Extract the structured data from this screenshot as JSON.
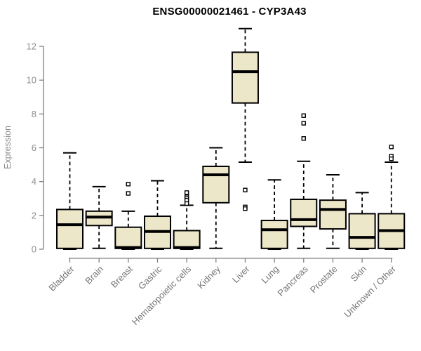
{
  "title": "ENSG00000021461 - CYP3A43",
  "chart_data": {
    "type": "boxplot",
    "title": "ENSG00000021461 - CYP3A43",
    "xlabel": "",
    "ylabel": "Expression",
    "ylim": [
      0,
      13.4
    ],
    "yticks": [
      0,
      2,
      4,
      6,
      8,
      10,
      12
    ],
    "grid": false,
    "legend": false,
    "colors": {
      "box_fill": "#EDE7C9",
      "box_border": "#000000",
      "median": "#000000",
      "whisker": "#000000",
      "axis": "#808080",
      "tick_label": "#8a8f96",
      "category_label": "#767676",
      "title": "#000000",
      "background": "#ffffff"
    },
    "categories": [
      "Bladder",
      "Brain",
      "Breast",
      "Gastric",
      "Hematopoietic cells",
      "Kidney",
      "Liver",
      "Lung",
      "Pancreas",
      "Prostate",
      "Skin",
      "Unknown / Other"
    ],
    "series": [
      {
        "category": "Bladder",
        "whisker_low": 0,
        "q1": 0.05,
        "median": 1.45,
        "q3": 2.35,
        "whisker_high": 5.7,
        "outliers": []
      },
      {
        "category": "Brain",
        "whisker_low": 0.05,
        "q1": 1.4,
        "median": 1.9,
        "q3": 2.25,
        "whisker_high": 3.7,
        "outliers": []
      },
      {
        "category": "Breast",
        "whisker_low": 0,
        "q1": 0.05,
        "median": 0.1,
        "q3": 1.3,
        "whisker_high": 2.25,
        "outliers": [
          3.85,
          3.3
        ]
      },
      {
        "category": "Gastric",
        "whisker_low": 0,
        "q1": 0.05,
        "median": 1.05,
        "q3": 1.95,
        "whisker_high": 4.05,
        "outliers": []
      },
      {
        "category": "Hematopoietic cells",
        "whisker_low": 0,
        "q1": 0.05,
        "median": 0.1,
        "q3": 1.1,
        "whisker_high": 2.6,
        "outliers": [
          3.35,
          3.1,
          3.0,
          2.9,
          2.7
        ]
      },
      {
        "category": "Kidney",
        "whisker_low": 0.05,
        "q1": 2.75,
        "median": 4.4,
        "q3": 4.9,
        "whisker_high": 6.0,
        "outliers": []
      },
      {
        "category": "Liver",
        "whisker_low": 5.15,
        "q1": 8.65,
        "median": 10.5,
        "q3": 11.65,
        "whisker_high": 13.05,
        "outliers": [
          3.5,
          2.5,
          2.4
        ]
      },
      {
        "category": "Lung",
        "whisker_low": 0,
        "q1": 0.05,
        "median": 1.15,
        "q3": 1.7,
        "whisker_high": 4.1,
        "outliers": []
      },
      {
        "category": "Pancreas",
        "whisker_low": 0.05,
        "q1": 1.35,
        "median": 1.75,
        "q3": 2.95,
        "whisker_high": 5.2,
        "outliers": [
          7.9,
          7.45,
          6.55
        ]
      },
      {
        "category": "Prostate",
        "whisker_low": 0.05,
        "q1": 1.2,
        "median": 2.35,
        "q3": 2.9,
        "whisker_high": 4.4,
        "outliers": []
      },
      {
        "category": "Skin",
        "whisker_low": 0,
        "q1": 0.05,
        "median": 0.7,
        "q3": 2.1,
        "whisker_high": 3.35,
        "outliers": []
      },
      {
        "category": "Unknown / Other",
        "whisker_low": 0,
        "q1": 0.05,
        "median": 1.1,
        "q3": 2.1,
        "whisker_high": 5.15,
        "outliers": [
          6.05,
          5.5,
          5.35
        ]
      }
    ]
  }
}
